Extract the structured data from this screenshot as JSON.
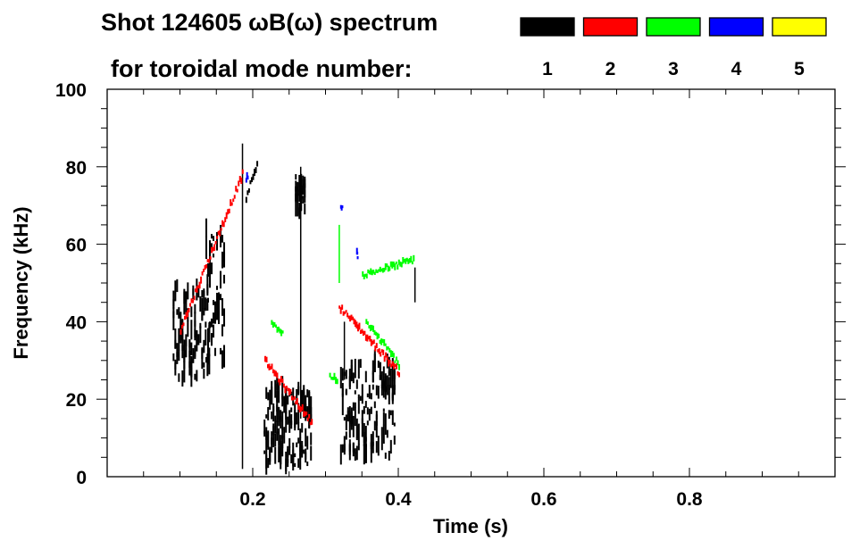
{
  "chart_data": {
    "type": "heatmap",
    "title_line1": "Shot 124605 ωB(ω) spectrum",
    "title_line2": "for toroidal mode number:",
    "xlabel": "Time (s)",
    "ylabel": "Frequency (kHz)",
    "xlim": [
      0,
      1.0
    ],
    "ylim": [
      0,
      100
    ],
    "x_ticks": [
      {
        "value": 0.2,
        "label": "0.2"
      },
      {
        "value": 0.4,
        "label": "0.4"
      },
      {
        "value": 0.6,
        "label": "0.6"
      },
      {
        "value": 0.8,
        "label": "0.8"
      }
    ],
    "y_ticks": [
      {
        "value": 0,
        "label": "0"
      },
      {
        "value": 20,
        "label": "20"
      },
      {
        "value": 40,
        "label": "40"
      },
      {
        "value": 60,
        "label": "60"
      },
      {
        "value": 80,
        "label": "80"
      },
      {
        "value": 100,
        "label": "100"
      }
    ],
    "legend": {
      "placement": "top-right",
      "entries": [
        {
          "mode": "1",
          "color": "#000000"
        },
        {
          "mode": "2",
          "color": "#ff0000"
        },
        {
          "mode": "3",
          "color": "#00ff00"
        },
        {
          "mode": "4",
          "color": "#0000ff"
        },
        {
          "mode": "5",
          "color": "#ffff00"
        }
      ]
    },
    "features": [
      {
        "mode": 1,
        "kind": "blob",
        "t": [
          0.09,
          0.14
        ],
        "f": [
          25,
          50
        ],
        "density": 0.55
      },
      {
        "mode": 1,
        "kind": "blob",
        "t": [
          0.135,
          0.16
        ],
        "f": [
          30,
          65
        ],
        "density": 0.5
      },
      {
        "mode": 1,
        "kind": "blob",
        "t": [
          0.215,
          0.28
        ],
        "f": [
          3,
          24
        ],
        "density": 0.7
      },
      {
        "mode": 1,
        "kind": "blob",
        "t": [
          0.258,
          0.272
        ],
        "f": [
          68,
          78
        ],
        "density": 0.8
      },
      {
        "mode": 1,
        "kind": "blob",
        "t": [
          0.32,
          0.395
        ],
        "f": [
          5,
          30
        ],
        "density": 0.6
      },
      {
        "mode": 1,
        "kind": "chirp",
        "t": [
          0.19,
          0.205
        ],
        "f": [
          72,
          81
        ]
      },
      {
        "mode": 1,
        "kind": "vline",
        "t": 0.185,
        "f": [
          2,
          86
        ]
      },
      {
        "mode": 1,
        "kind": "vline",
        "t": 0.265,
        "f": [
          15,
          80
        ]
      },
      {
        "mode": 1,
        "kind": "vline",
        "t": 0.325,
        "f": [
          25,
          40
        ]
      },
      {
        "mode": 1,
        "kind": "vline",
        "t": 0.422,
        "f": [
          45,
          54
        ]
      },
      {
        "mode": 2,
        "kind": "chirp",
        "t": [
          0.1,
          0.185
        ],
        "f": [
          38,
          78
        ]
      },
      {
        "mode": 2,
        "kind": "chirp",
        "t": [
          0.216,
          0.28
        ],
        "f": [
          30,
          14
        ]
      },
      {
        "mode": 2,
        "kind": "chirp",
        "t": [
          0.318,
          0.4
        ],
        "f": [
          44,
          27
        ]
      },
      {
        "mode": 3,
        "kind": "vline",
        "t": 0.318,
        "f": [
          50,
          65
        ]
      },
      {
        "mode": 3,
        "kind": "chirp",
        "t": [
          0.35,
          0.42
        ],
        "f": [
          52,
          56
        ]
      },
      {
        "mode": 3,
        "kind": "chirp",
        "t": [
          0.355,
          0.4
        ],
        "f": [
          40,
          29
        ]
      },
      {
        "mode": 3,
        "kind": "chirp",
        "t": [
          0.225,
          0.24
        ],
        "f": [
          40,
          37
        ]
      },
      {
        "mode": 3,
        "kind": "chirp",
        "t": [
          0.305,
          0.315
        ],
        "f": [
          26,
          25
        ]
      },
      {
        "mode": 4,
        "kind": "chirp",
        "t": [
          0.19,
          0.192
        ],
        "f": [
          77,
          77
        ]
      },
      {
        "mode": 4,
        "kind": "chirp",
        "t": [
          0.32,
          0.322
        ],
        "f": [
          70,
          69
        ]
      },
      {
        "mode": 4,
        "kind": "chirp",
        "t": [
          0.342,
          0.343
        ],
        "f": [
          58,
          57
        ]
      }
    ]
  }
}
